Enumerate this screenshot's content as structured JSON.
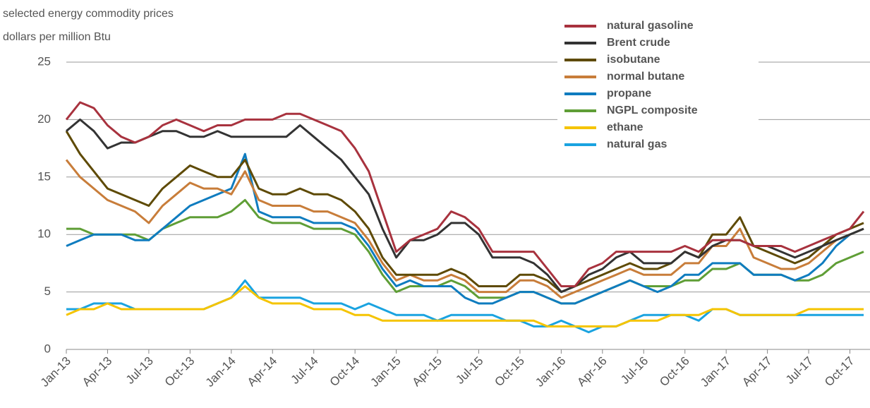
{
  "chart_data": {
    "type": "line",
    "title": "selected energy commodity prices",
    "subtitle": "dollars per million Btu",
    "categories": [
      "Jan-13",
      null,
      null,
      "Apr-13",
      null,
      null,
      "Jul-13",
      null,
      null,
      "Oct-13",
      null,
      null,
      "Jan-14",
      null,
      null,
      "Apr-14",
      null,
      null,
      "Jul-14",
      null,
      null,
      "Oct-14",
      null,
      null,
      "Jan-15",
      null,
      null,
      "Apr-15",
      null,
      null,
      "Jul-15",
      null,
      null,
      "Oct-15",
      null,
      null,
      "Jan-16",
      null,
      null,
      "Apr-16",
      null,
      null,
      "Jul-16",
      null,
      null,
      "Oct-16",
      null,
      null,
      "Jan-17",
      null,
      null,
      "Apr-17",
      null,
      null,
      "Jul-17",
      null,
      null,
      "Oct-17",
      null
    ],
    "ylim": [
      0,
      25
    ],
    "yticks": [
      0,
      5,
      10,
      15,
      20,
      25
    ],
    "grid": true,
    "legend": "top-right",
    "series": [
      {
        "name": "natural gasoline",
        "color": "#a8323e",
        "values": [
          20,
          21.5,
          21,
          19.5,
          18.5,
          18,
          18.5,
          19.5,
          20,
          19.5,
          19,
          19.5,
          19.5,
          20,
          20,
          20,
          20.5,
          20.5,
          20,
          19.5,
          19,
          17.5,
          15.5,
          12,
          8.5,
          9.5,
          10,
          10.5,
          12,
          11.5,
          10.5,
          8.5,
          8.5,
          8.5,
          8.5,
          7,
          5.5,
          5.5,
          7,
          7.5,
          8.5,
          8.5,
          8.5,
          8.5,
          8.5,
          9,
          8.5,
          9.5,
          9.5,
          9.5,
          9,
          9,
          9,
          8.5,
          9,
          9.5,
          10,
          10.5,
          12
        ]
      },
      {
        "name": "Brent crude",
        "color": "#333333",
        "values": [
          19,
          20,
          19,
          17.5,
          18,
          18,
          18.5,
          19,
          19,
          18.5,
          18.5,
          19,
          18.5,
          18.5,
          18.5,
          18.5,
          18.5,
          19.5,
          18.5,
          17.5,
          16.5,
          15,
          13.5,
          10.5,
          8,
          9.5,
          9.5,
          10,
          11,
          11,
          10,
          8,
          8,
          8,
          7.5,
          6.5,
          5,
          5.5,
          6.5,
          7,
          8,
          8.5,
          7.5,
          7.5,
          7.5,
          8.5,
          8,
          9,
          9.5,
          9.5,
          9,
          9,
          8.5,
          8,
          8.5,
          9,
          9.5,
          10,
          10.5
        ]
      },
      {
        "name": "isobutane",
        "color": "#5e4a05",
        "values": [
          19,
          17,
          15.5,
          14,
          13.5,
          13,
          12.5,
          14,
          15,
          16,
          15.5,
          15,
          15,
          16.5,
          14,
          13.5,
          13.5,
          14,
          13.5,
          13.5,
          13,
          12,
          10.5,
          8,
          6.5,
          6.5,
          6.5,
          6.5,
          7,
          6.5,
          5.5,
          5.5,
          5.5,
          6.5,
          6.5,
          6,
          5,
          5.5,
          6,
          6.5,
          7,
          7.5,
          7,
          7,
          7.5,
          8.5,
          8,
          10,
          10,
          11.5,
          9,
          8.5,
          8,
          7.5,
          8,
          9,
          10,
          10.5,
          11
        ]
      },
      {
        "name": "normal butane",
        "color": "#c87d3a",
        "values": [
          16.5,
          15,
          14,
          13,
          12.5,
          12,
          11,
          12.5,
          13.5,
          14.5,
          14,
          14,
          13.5,
          15.5,
          13,
          12.5,
          12.5,
          12.5,
          12,
          12,
          11.5,
          11,
          9.5,
          7.5,
          6,
          6.5,
          6,
          6,
          6.5,
          6,
          5,
          5,
          5,
          6,
          6,
          5.5,
          4.5,
          5,
          5.5,
          6,
          6.5,
          7,
          6.5,
          6.5,
          6.5,
          7.5,
          7.5,
          9,
          9,
          10.5,
          8,
          7.5,
          7,
          7,
          7.5,
          8.5,
          9.5,
          10,
          10.5
        ]
      },
      {
        "name": "propane",
        "color": "#0f7cbf",
        "values": [
          9,
          9.5,
          10,
          10,
          10,
          9.5,
          9.5,
          10.5,
          11.5,
          12.5,
          13,
          13.5,
          14,
          17,
          12,
          11.5,
          11.5,
          11.5,
          11,
          11,
          11,
          10.5,
          9,
          7,
          5.5,
          6,
          5.5,
          5.5,
          5.5,
          4.5,
          4,
          4,
          4.5,
          5,
          5,
          4.5,
          4,
          4,
          4.5,
          5,
          5.5,
          6,
          5.5,
          5,
          5.5,
          6.5,
          6.5,
          7.5,
          7.5,
          7.5,
          6.5,
          6.5,
          6.5,
          6,
          6.5,
          7.5,
          9,
          10,
          10.5
        ]
      },
      {
        "name": "NGPL composite",
        "color": "#5f9e36",
        "values": [
          10.5,
          10.5,
          10,
          10,
          10,
          10,
          9.5,
          10.5,
          11,
          11.5,
          11.5,
          11.5,
          12,
          13,
          11.5,
          11,
          11,
          11,
          10.5,
          10.5,
          10.5,
          10,
          8.5,
          6.5,
          5,
          5.5,
          5.5,
          5.5,
          6,
          5.5,
          4.5,
          4.5,
          4.5,
          5,
          5,
          4.5,
          4,
          4,
          4.5,
          5,
          5.5,
          6,
          5.5,
          5.5,
          5.5,
          6,
          6,
          7,
          7,
          7.5,
          6.5,
          6.5,
          6.5,
          6,
          6,
          6.5,
          7.5,
          8,
          8.5
        ]
      },
      {
        "name": "ethane",
        "color": "#f5c400",
        "values": [
          3,
          3.5,
          3.5,
          4,
          3.5,
          3.5,
          3.5,
          3.5,
          3.5,
          3.5,
          3.5,
          4,
          4.5,
          5.5,
          4.5,
          4,
          4,
          4,
          3.5,
          3.5,
          3.5,
          3,
          3,
          2.5,
          2.5,
          2.5,
          2.5,
          2.5,
          2.5,
          2.5,
          2.5,
          2.5,
          2.5,
          2.5,
          2.5,
          2,
          2,
          2,
          2,
          2,
          2,
          2.5,
          2.5,
          2.5,
          3,
          3,
          3,
          3.5,
          3.5,
          3,
          3,
          3,
          3,
          3,
          3.5,
          3.5,
          3.5,
          3.5,
          3.5
        ]
      },
      {
        "name": "natural gas",
        "color": "#1aa3e0",
        "values": [
          3.5,
          3.5,
          4,
          4,
          4,
          3.5,
          3.5,
          3.5,
          3.5,
          3.5,
          3.5,
          4,
          4.5,
          6,
          4.5,
          4.5,
          4.5,
          4.5,
          4,
          4,
          4,
          3.5,
          4,
          3.5,
          3,
          3,
          3,
          2.5,
          3,
          3,
          3,
          3,
          2.5,
          2.5,
          2,
          2,
          2.5,
          2,
          1.5,
          2,
          2,
          2.5,
          3,
          3,
          3,
          3,
          2.5,
          3.5,
          3.5,
          3,
          3,
          3,
          3,
          3,
          3,
          3,
          3,
          3,
          3
        ]
      }
    ]
  }
}
